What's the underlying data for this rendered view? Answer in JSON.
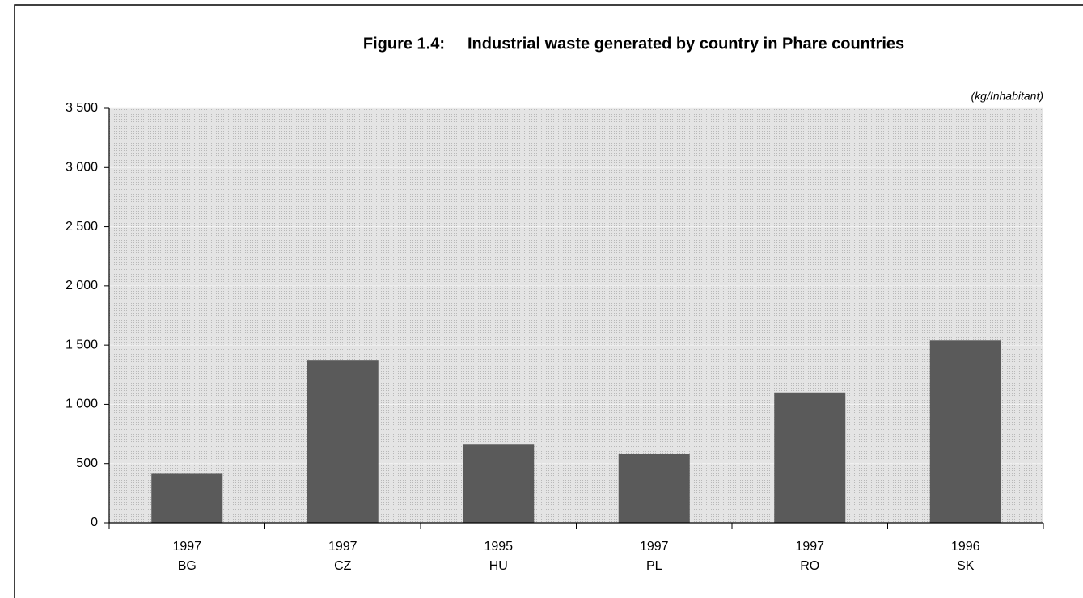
{
  "chart_data": {
    "type": "bar",
    "figure": "Figure 1.4:",
    "title": "Industrial waste generated by country in Phare countries",
    "unit_label": "(kg/Inhabitant)",
    "categories": [
      "BG",
      "CZ",
      "HU",
      "PL",
      "RO",
      "SK"
    ],
    "years": [
      "1997",
      "1997",
      "1995",
      "1997",
      "1997",
      "1996"
    ],
    "values": [
      420,
      1370,
      660,
      580,
      1100,
      1540
    ],
    "color": "#5a5a5a",
    "ylim": [
      0,
      3500
    ],
    "yticks": [
      0,
      500,
      {
        "value": 1000,
        "label": "1 000"
      },
      {
        "value": 1500,
        "label": "1 500"
      },
      {
        "value": 2000,
        "label": "2 000"
      },
      {
        "value": 2500,
        "label": "2 500"
      },
      {
        "value": 3000,
        "label": "3 000"
      },
      {
        "value": 3500,
        "label": "3 500"
      }
    ],
    "grid": true
  }
}
